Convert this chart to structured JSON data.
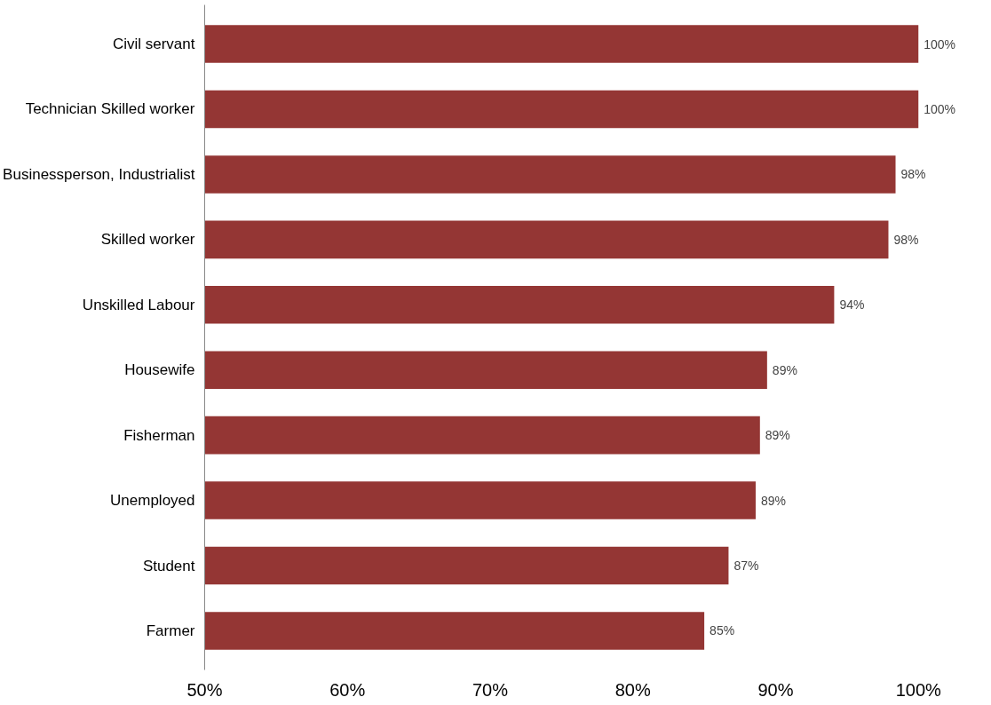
{
  "chart_data": {
    "type": "bar",
    "orientation": "horizontal",
    "categories": [
      "Civil servant",
      "Technician Skilled worker",
      "Businessperson, Industrialist",
      "Skilled worker",
      "Unskilled Labour",
      "Housewife",
      "Fisherman",
      "Unemployed",
      "Student",
      "Farmer"
    ],
    "values": [
      100,
      100,
      98.4,
      97.9,
      94.1,
      89.4,
      88.9,
      88.6,
      86.7,
      85.0
    ],
    "value_labels": [
      "100%",
      "100%",
      "98%",
      "98%",
      "94%",
      "89%",
      "89%",
      "89%",
      "87%",
      "85%"
    ],
    "color": "#943634",
    "xlim": [
      50,
      100
    ],
    "xticks": [
      {
        "value": 50,
        "label": "50%"
      },
      {
        "value": 60,
        "label": "60%"
      },
      {
        "value": 70,
        "label": "70%"
      },
      {
        "value": 80,
        "label": "80%"
      },
      {
        "value": 90,
        "label": "90%"
      },
      {
        "value": 100,
        "label": "100%"
      }
    ],
    "grid": false
  }
}
